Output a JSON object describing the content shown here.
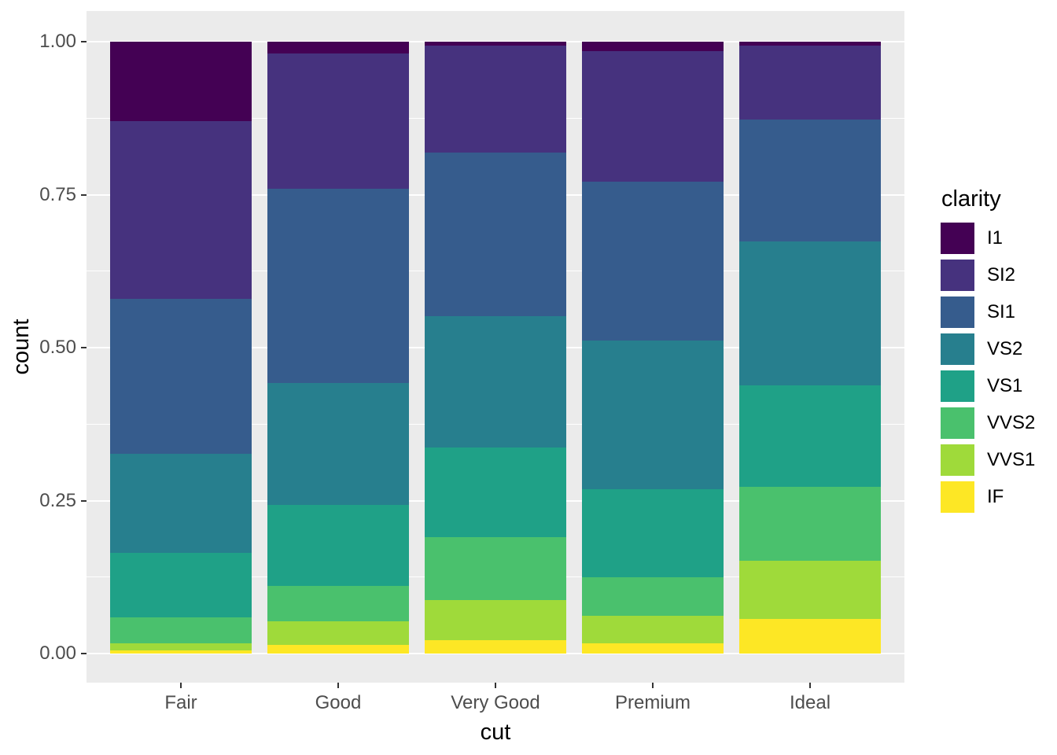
{
  "chart_data": {
    "type": "bar",
    "subtype": "stacked-filled-to-1",
    "title": "",
    "xlabel": "cut",
    "ylabel": "count",
    "categories": [
      "Fair",
      "Good",
      "Very Good",
      "Premium",
      "Ideal"
    ],
    "series": [
      {
        "name": "I1",
        "color": "#440154",
        "values": [
          0.1304,
          0.0196,
          0.007,
          0.0149,
          0.0068
        ]
      },
      {
        "name": "SI2",
        "color": "#46327E",
        "values": [
          0.2894,
          0.2203,
          0.1738,
          0.2138,
          0.1206
        ]
      },
      {
        "name": "SI1",
        "color": "#365C8D",
        "values": [
          0.2534,
          0.318,
          0.2682,
          0.2592,
          0.1987
        ]
      },
      {
        "name": "VS2",
        "color": "#277F8E",
        "values": [
          0.1621,
          0.1993,
          0.2144,
          0.2434,
          0.2353
        ]
      },
      {
        "name": "VS1",
        "color": "#1FA187",
        "values": [
          0.1056,
          0.1321,
          0.1469,
          0.1442,
          0.1665
        ]
      },
      {
        "name": "VVS2",
        "color": "#4AC16D",
        "values": [
          0.0429,
          0.0583,
          0.1022,
          0.0631,
          0.1209
        ]
      },
      {
        "name": "VVS1",
        "color": "#9FDA3A",
        "values": [
          0.0106,
          0.0379,
          0.0653,
          0.0447,
          0.095
        ]
      },
      {
        "name": "IF",
        "color": "#FDE725",
        "values": [
          0.0056,
          0.0145,
          0.0222,
          0.0167,
          0.0562
        ]
      }
    ],
    "stacking_note": "series listed top-to-bottom as drawn; IF at bar bottom, I1 at bar top; each bar sums to 1",
    "ylim": [
      0,
      1
    ],
    "y_major_ticks": [
      0,
      0.25,
      0.5,
      0.75,
      1
    ],
    "y_tick_labels": [
      "0.00",
      "0.25",
      "0.50",
      "0.75",
      "1.00"
    ],
    "y_minor_ticks": [
      0.125,
      0.375,
      0.625,
      0.875
    ],
    "grid": "white major and minor horizontal gridlines on gray panel",
    "legend": {
      "title": "clarity",
      "position": "right",
      "entries": [
        "I1",
        "SI2",
        "SI1",
        "VS2",
        "VS1",
        "VVS2",
        "VVS1",
        "IF"
      ]
    },
    "colors": {
      "panel_background": "#EBEBEB",
      "gridline": "#FFFFFF",
      "axis_text": "#4D4D4D",
      "tick_mark": "#333333",
      "title_text": "#000000",
      "figure_background": "#FFFFFF"
    }
  }
}
